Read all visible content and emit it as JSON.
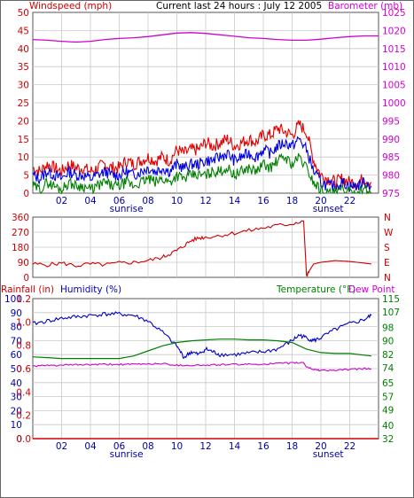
{
  "header": {
    "windspeed_label": "Windspeed (mph)",
    "title": "Current last 24 hours : July 12 2005",
    "barometer_label": "Barometer (mb)"
  },
  "x_axis": {
    "tick_labels": [
      "02",
      "04",
      "06",
      "08",
      "10",
      "12",
      "14",
      "16",
      "18",
      "20",
      "22"
    ],
    "sunrise_label": "sunrise",
    "sunset_label": "sunset",
    "sunrise_hour": 6.5,
    "sunset_hour": 20.5
  },
  "panel2": {
    "right_labels": [
      "N",
      "W",
      "S",
      "E",
      "N"
    ]
  },
  "panel3": {
    "rainfall_label": "Rainfall (in)",
    "humidity_label": "Humidity (%)",
    "temperature_label": "Temperature (°F)",
    "dewpoint_label": "Dew Point"
  },
  "colors": {
    "wind_gust": "#e00000",
    "wind_avg": "#0000e0",
    "wind_low": "#008000",
    "barometer": "#d000d0",
    "direction": "#d00000",
    "humidity": "#0000c0",
    "temperature": "#008000",
    "dewpoint": "#d000d0",
    "rainfall": "#d00000",
    "grid": "#c8c8c8"
  },
  "chart_data": [
    {
      "type": "line",
      "title": "Current last 24 hours : July 12 2005",
      "xlabel": "",
      "ylabel": "Windspeed (mph)",
      "y2label": "Barometer (mb)",
      "xlim": [
        0,
        24
      ],
      "ylim": [
        0,
        50
      ],
      "y2lim": [
        975,
        1025
      ],
      "y_ticks": [
        0,
        5,
        10,
        15,
        20,
        25,
        30,
        35,
        40,
        45,
        50
      ],
      "y2_ticks": [
        975,
        980,
        985,
        990,
        995,
        1000,
        1005,
        1010,
        1015,
        1020,
        1025
      ],
      "grid": true,
      "series": [
        {
          "name": "Windspeed (mph)",
          "axis": "y",
          "x": [
            0,
            0.5,
            1,
            1.5,
            2,
            2.5,
            3,
            3.5,
            4,
            4.5,
            5,
            5.5,
            6,
            6.5,
            7,
            7.5,
            8,
            8.5,
            9,
            9.5,
            10,
            10.5,
            11,
            11.5,
            12,
            12.5,
            13,
            13.5,
            14,
            14.5,
            15,
            15.5,
            16,
            16.5,
            17,
            17.5,
            18,
            18.5,
            19,
            19.5,
            20,
            20.5,
            21,
            21.5,
            22,
            22.5,
            23,
            23.5
          ],
          "values": [
            5,
            4,
            6,
            5,
            4,
            6,
            5,
            5,
            4,
            5,
            6,
            5,
            5,
            6,
            5,
            6,
            7,
            6,
            7,
            6,
            8,
            7,
            8,
            8,
            9,
            9,
            10,
            11,
            9,
            10,
            11,
            10,
            12,
            11,
            13,
            14,
            13,
            15,
            12,
            6,
            3,
            2,
            2,
            3,
            2,
            2,
            3,
            2
          ],
          "upper": [
            7,
            6,
            8,
            7,
            6,
            8,
            7,
            7,
            6,
            7,
            8,
            7,
            7,
            9,
            8,
            9,
            10,
            9,
            10,
            9,
            12,
            11,
            12,
            12,
            14,
            13,
            14,
            15,
            13,
            14,
            15,
            14,
            16,
            16,
            18,
            17,
            16,
            19,
            17,
            9,
            5,
            4,
            3,
            4,
            3,
            3,
            4,
            3
          ],
          "lower": [
            2,
            1,
            3,
            2,
            1,
            3,
            2,
            2,
            1,
            2,
            3,
            2,
            2,
            3,
            2,
            3,
            4,
            3,
            4,
            3,
            5,
            4,
            5,
            5,
            5,
            6,
            6,
            7,
            5,
            6,
            7,
            6,
            8,
            7,
            9,
            10,
            8,
            10,
            7,
            3,
            1,
            0,
            0,
            1,
            0,
            0,
            1,
            0
          ]
        },
        {
          "name": "Barometer (mb)",
          "axis": "y2",
          "x": [
            0,
            1,
            2,
            3,
            4,
            5,
            6,
            7,
            8,
            9,
            10,
            11,
            12,
            13,
            14,
            15,
            16,
            17,
            18,
            19,
            20,
            21,
            22,
            23,
            24
          ],
          "values": [
            1017.5,
            1017.3,
            1017,
            1016.8,
            1017,
            1017.5,
            1017.8,
            1018,
            1018.3,
            1018.8,
            1019.3,
            1019.4,
            1019.2,
            1018.8,
            1018.4,
            1018,
            1017.8,
            1017.5,
            1017.3,
            1017.3,
            1017.6,
            1018,
            1018.3,
            1018.5,
            1018.5
          ]
        }
      ]
    },
    {
      "type": "line",
      "ylabel": "",
      "xlim": [
        0,
        24
      ],
      "ylim": [
        0,
        360
      ],
      "y_ticks": [
        0,
        90,
        180,
        270,
        360
      ],
      "grid": true,
      "series": [
        {
          "name": "",
          "x": [
            0,
            1,
            2,
            3,
            4,
            5,
            6,
            7,
            8,
            9,
            9.5,
            10,
            10.5,
            11,
            11.5,
            12,
            13,
            14,
            15,
            16,
            17,
            18,
            18.8,
            19,
            19.2,
            19.5,
            20,
            21,
            22,
            23,
            23.5
          ],
          "values": [
            80,
            75,
            85,
            70,
            80,
            75,
            85,
            90,
            100,
            120,
            140,
            160,
            190,
            220,
            235,
            240,
            250,
            265,
            280,
            295,
            310,
            320,
            340,
            5,
            40,
            80,
            90,
            100,
            95,
            85,
            80
          ]
        }
      ]
    },
    {
      "type": "line",
      "xlim": [
        0,
        24
      ],
      "ylim": [
        0,
        100
      ],
      "y_ticks": [
        0,
        10,
        20,
        30,
        40,
        50,
        60,
        70,
        80,
        90,
        100
      ],
      "rain_ticks": [
        "0.0",
        "0.2",
        "0.4",
        "0.6",
        "0.8",
        "1.0",
        "1.2"
      ],
      "y2lim": [
        32,
        115
      ],
      "y2_ticks": [
        32,
        40,
        49,
        57,
        65,
        74,
        82,
        90,
        98,
        107,
        115
      ],
      "grid": true,
      "series": [
        {
          "name": "Humidity (%)",
          "axis": "y",
          "x": [
            0,
            1,
            2,
            3,
            4,
            5,
            6,
            7,
            8,
            9,
            10,
            10.5,
            11,
            11.5,
            12,
            12.5,
            13,
            14,
            15,
            16,
            17,
            18,
            18.5,
            19,
            19.5,
            20,
            21,
            22,
            23,
            23.5
          ],
          "values": [
            82,
            84,
            86,
            87,
            88,
            89,
            89,
            88,
            84,
            76,
            66,
            58,
            62,
            60,
            64,
            62,
            60,
            60,
            61,
            62,
            64,
            70,
            74,
            72,
            70,
            72,
            78,
            82,
            85,
            88
          ]
        },
        {
          "name": "Temperature (°F)",
          "axis": "y2",
          "x": [
            0,
            1,
            2,
            3,
            4,
            5,
            6,
            7,
            8,
            9,
            10,
            11,
            12,
            13,
            14,
            15,
            16,
            17,
            18,
            19,
            20,
            21,
            22,
            23,
            23.5
          ],
          "values": [
            80.5,
            80,
            79.5,
            79.5,
            79.5,
            79.5,
            79.5,
            81,
            84,
            87,
            89,
            90,
            90.5,
            91,
            91,
            90.5,
            90.5,
            90,
            89,
            85,
            83,
            82.5,
            82.5,
            81.5,
            81
          ]
        },
        {
          "name": "Dew Point",
          "axis": "y2",
          "x": [
            0,
            1,
            2,
            3,
            4,
            5,
            6,
            7,
            8,
            9,
            10,
            11,
            12,
            13,
            14,
            15,
            16,
            17,
            18,
            18.8,
            19,
            19.5,
            20,
            21,
            22,
            23,
            23.5
          ],
          "values": [
            75,
            75.3,
            75.5,
            75.8,
            75.8,
            76,
            76,
            76,
            76.3,
            76.5,
            75.5,
            75.5,
            75.5,
            75.8,
            76,
            76,
            76.2,
            76.5,
            76.8,
            77,
            74.5,
            73,
            72.5,
            72.5,
            73,
            73.5,
            73.5
          ]
        },
        {
          "name": "Rainfall (in)",
          "axis": "y",
          "x": [
            0,
            24
          ],
          "values": [
            0,
            0
          ]
        }
      ]
    }
  ]
}
